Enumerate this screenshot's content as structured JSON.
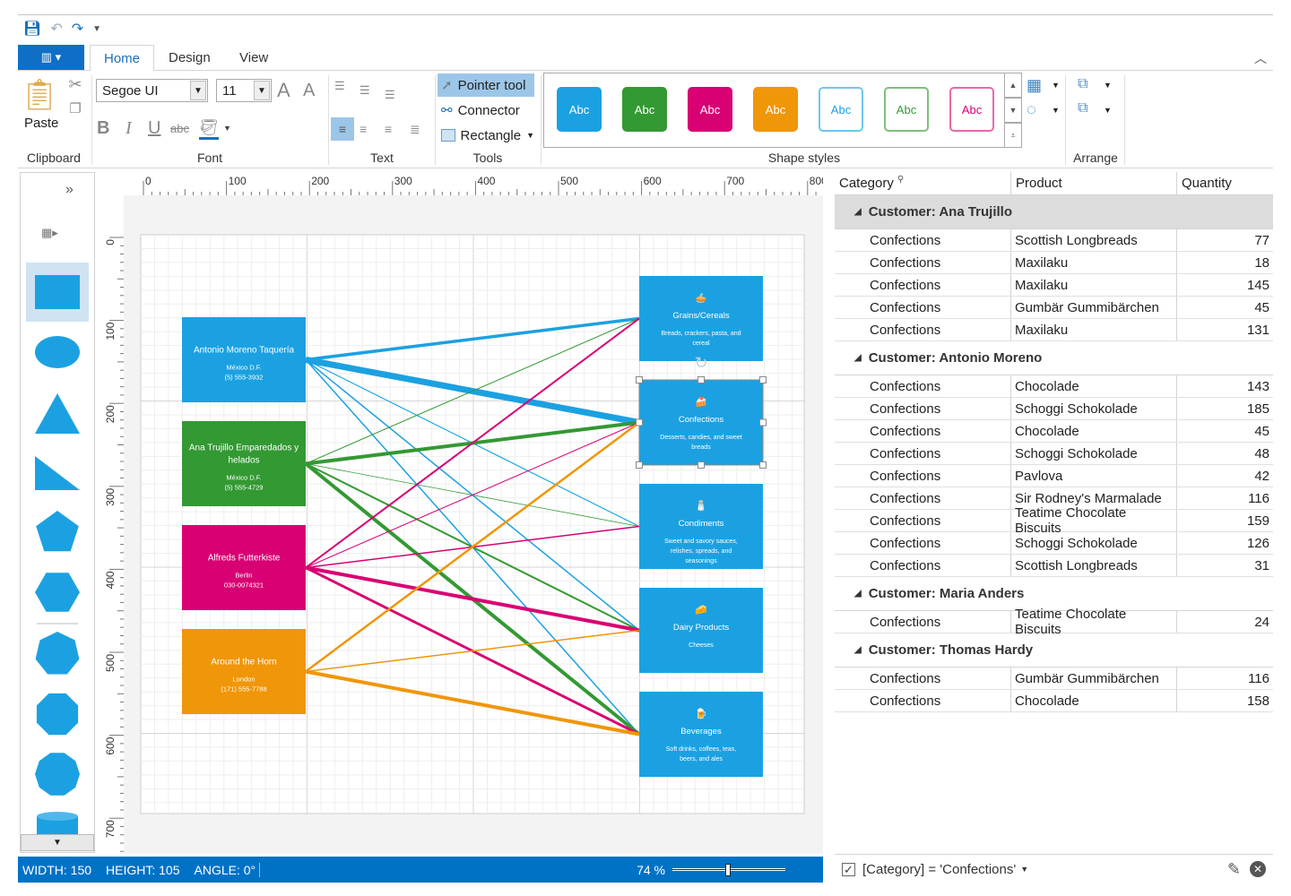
{
  "qat": {
    "icons": [
      "save-icon",
      "undo-icon",
      "redo-icon",
      "customize-icon"
    ]
  },
  "tabs": [
    {
      "label": "Home",
      "active": true
    },
    {
      "label": "Design"
    },
    {
      "label": "View"
    }
  ],
  "ribbon": {
    "clipboard": {
      "label": "Clipboard",
      "paste": "Paste"
    },
    "font": {
      "label": "Font",
      "family": "Segoe UI",
      "size": "11",
      "bold": "B",
      "italic": "I",
      "underline": "U",
      "strike": "abc"
    },
    "text": {
      "label": "Text"
    },
    "tools": {
      "label": "Tools",
      "items": [
        "Pointer tool",
        "Connector",
        "Rectangle"
      ],
      "selected": "Pointer tool"
    },
    "shape_styles": {
      "label": "Shape styles",
      "items": [
        {
          "text": "Abc",
          "fill": "#1ba1e2",
          "color": "#ffffff"
        },
        {
          "text": "Abc",
          "fill": "#339933",
          "color": "#ffffff"
        },
        {
          "text": "Abc",
          "fill": "#d80073",
          "color": "#ffffff"
        },
        {
          "text": "Abc",
          "fill": "#f09609",
          "color": "#ffffff"
        },
        {
          "text": "Abc",
          "fill": "#ffffff",
          "color": "#1ba1e2",
          "border": "#6ec6ef"
        },
        {
          "text": "Abc",
          "fill": "#ffffff",
          "color": "#339933",
          "border": "#7dbf7d"
        },
        {
          "text": "Abc",
          "fill": "#ffffff",
          "color": "#d80073",
          "border": "#e868a8"
        }
      ]
    },
    "arrange": {
      "label": "Arrange"
    }
  },
  "shapes_panel": {
    "items": [
      "rectangle",
      "ellipse",
      "triangle",
      "right-triangle",
      "pentagon",
      "hexagon",
      "heptagon",
      "octagon",
      "decagon",
      "cylinder"
    ],
    "selected": "rectangle"
  },
  "rulers": {
    "h": [
      "0",
      "100",
      "200",
      "300",
      "400",
      "500",
      "600",
      "700",
      "800"
    ],
    "v": [
      "0",
      "100",
      "200",
      "300",
      "400",
      "500",
      "600",
      "700"
    ]
  },
  "diagram": {
    "customers": [
      {
        "name": "Antonio Moreno Taquería",
        "city": "México D.F.",
        "phone": "(5) 555-3932",
        "color": "#1ba1e2"
      },
      {
        "name": "Ana Trujillo Emparedados y helados",
        "city": "México D.F.",
        "phone": "(5) 555-4729",
        "color": "#339933"
      },
      {
        "name": "Alfreds Futterkiste",
        "city": "Berlin",
        "phone": "030-0074321",
        "color": "#d80073"
      },
      {
        "name": "Around the Horn",
        "city": "London",
        "phone": "(171) 555-7788",
        "color": "#f09609"
      }
    ],
    "categories": [
      {
        "name": "Grains/Cereals",
        "desc": "Breads, crackers, pasta, and cereal",
        "icon": "🥧"
      },
      {
        "name": "Confections",
        "desc": "Desserts, candies, and sweet breads",
        "icon": "🍰",
        "selected": true
      },
      {
        "name": "Condiments",
        "desc": "Sweet and savory sauces, relishes, spreads, and seasonings",
        "icon": "🧂"
      },
      {
        "name": "Dairy Products",
        "desc": "Cheeses",
        "icon": "🧀"
      },
      {
        "name": "Beverages",
        "desc": "Soft drinks, coffees, teas, beers, and ales",
        "icon": "🍺"
      }
    ],
    "connections": [
      {
        "from": 0,
        "to": 0,
        "weight": 3.5
      },
      {
        "from": 0,
        "to": 1,
        "weight": 7
      },
      {
        "from": 0,
        "to": 2,
        "weight": 1.2
      },
      {
        "from": 0,
        "to": 3,
        "weight": 1.5
      },
      {
        "from": 0,
        "to": 4,
        "weight": 1.5
      },
      {
        "from": 1,
        "to": 0,
        "weight": 1
      },
      {
        "from": 1,
        "to": 1,
        "weight": 4
      },
      {
        "from": 1,
        "to": 2,
        "weight": 0.8
      },
      {
        "from": 1,
        "to": 3,
        "weight": 2
      },
      {
        "from": 1,
        "to": 4,
        "weight": 4
      },
      {
        "from": 2,
        "to": 0,
        "weight": 2
      },
      {
        "from": 2,
        "to": 1,
        "weight": 1
      },
      {
        "from": 2,
        "to": 2,
        "weight": 1.5
      },
      {
        "from": 2,
        "to": 3,
        "weight": 4
      },
      {
        "from": 2,
        "to": 4,
        "weight": 3
      },
      {
        "from": 3,
        "to": 1,
        "weight": 2.5
      },
      {
        "from": 3,
        "to": 3,
        "weight": 1.5
      },
      {
        "from": 3,
        "to": 4,
        "weight": 4
      }
    ]
  },
  "status": {
    "width": "WIDTH: 150",
    "height": "HEIGHT: 105",
    "angle": "ANGLE: 0°",
    "zoom": "74 %",
    "zoom_value": 74
  },
  "grid": {
    "columns": [
      "Category",
      "Product",
      "Quantity"
    ],
    "groups": [
      {
        "title": "Customer: Ana Trujillo",
        "rows": [
          [
            "Confections",
            "Scottish Longbreads",
            "77"
          ],
          [
            "Confections",
            "Maxilaku",
            "18"
          ],
          [
            "Confections",
            "Maxilaku",
            "145"
          ],
          [
            "Confections",
            "Gumbär Gummibärchen",
            "45"
          ],
          [
            "Confections",
            "Maxilaku",
            "131"
          ]
        ]
      },
      {
        "title": "Customer: Antonio Moreno",
        "rows": [
          [
            "Confections",
            "Chocolade",
            "143"
          ],
          [
            "Confections",
            "Schoggi Schokolade",
            "185"
          ],
          [
            "Confections",
            "Chocolade",
            "45"
          ],
          [
            "Confections",
            "Schoggi Schokolade",
            "48"
          ],
          [
            "Confections",
            "Pavlova",
            "42"
          ],
          [
            "Confections",
            "Sir Rodney's Marmalade",
            "116"
          ],
          [
            "Confections",
            "Teatime Chocolate Biscuits",
            "159"
          ],
          [
            "Confections",
            "Schoggi Schokolade",
            "126"
          ],
          [
            "Confections",
            "Scottish Longbreads",
            "31"
          ]
        ]
      },
      {
        "title": "Customer: Maria Anders",
        "rows": [
          [
            "Confections",
            "Teatime Chocolate Biscuits",
            "24"
          ]
        ]
      },
      {
        "title": "Customer: Thomas Hardy",
        "rows": [
          [
            "Confections",
            "Gumbär Gummibärchen",
            "116"
          ],
          [
            "Confections",
            "Chocolade",
            "158"
          ]
        ]
      }
    ],
    "filter": "[Category] = 'Confections'",
    "filter_enabled": true
  }
}
